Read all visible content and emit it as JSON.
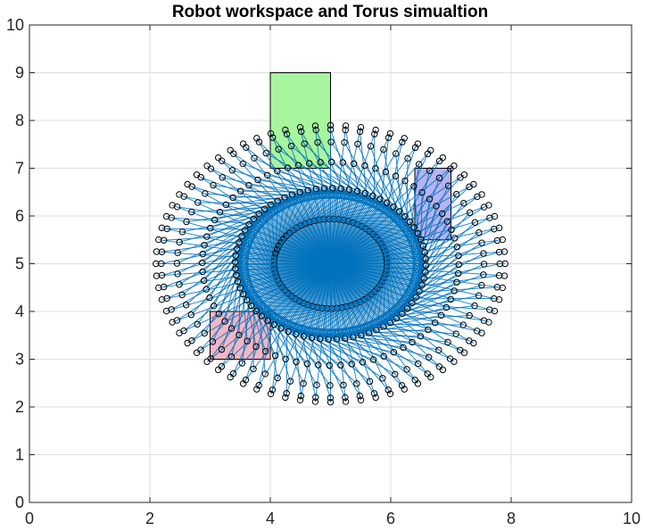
{
  "chart_data": {
    "type": "scatter",
    "title": "Robot workspace and Torus simualtion",
    "xlabel": "",
    "ylabel": "",
    "xlim": [
      0,
      10
    ],
    "ylim": [
      0,
      10
    ],
    "xticks": [
      0,
      2,
      4,
      6,
      8,
      10
    ],
    "yticks": [
      0,
      1,
      2,
      3,
      4,
      5,
      6,
      7,
      8,
      9,
      10
    ],
    "grid": true,
    "legend": "none",
    "series_color": "#0072bd",
    "marker_edge_color": "#000000",
    "rectangles": [
      {
        "x": [
          4,
          5
        ],
        "y": [
          7,
          9
        ],
        "fill": "#a8f5a0"
      },
      {
        "x": [
          3,
          4
        ],
        "y": [
          3,
          4
        ],
        "fill": "#f2b6c4"
      },
      {
        "x": [
          6.4,
          7
        ],
        "y": [
          5.5,
          7
        ],
        "fill": "#b6b4f2"
      }
    ],
    "robot": {
      "base": [
        5,
        5
      ],
      "link_lengths": [
        1.5,
        1.4
      ],
      "pose_count": 72,
      "rings": 6
    }
  }
}
